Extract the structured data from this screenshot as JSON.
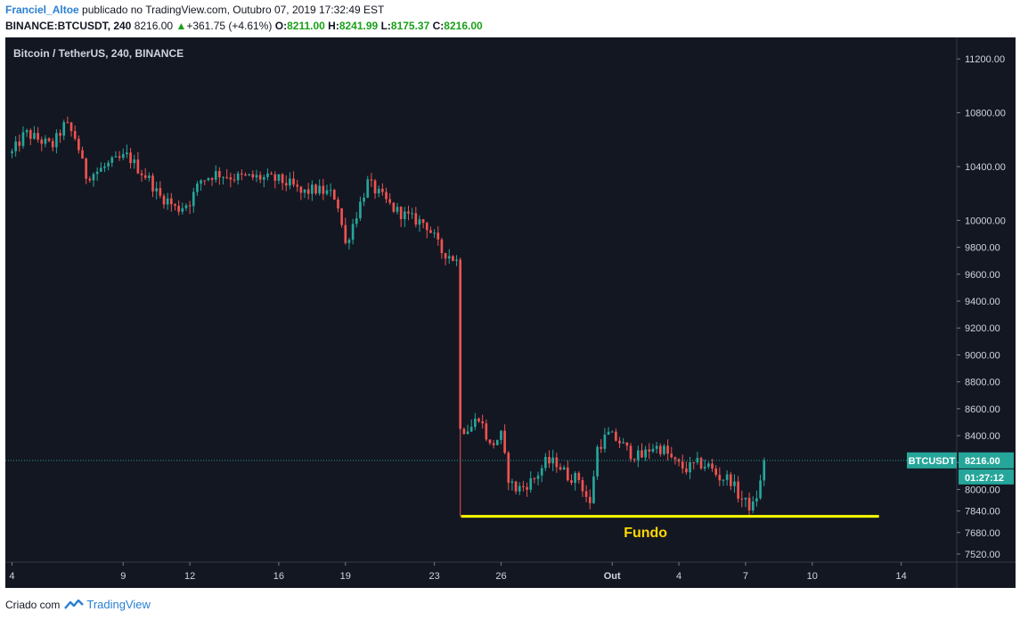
{
  "header": {
    "author": "Franciel_Altoe",
    "published": "publicado no TradingView.com, Outubro 07, 2019 17:32:49 EST",
    "symbol": "BINANCE:BTCUSDT, 240",
    "last": "8216.00",
    "change_arrow": "▲",
    "change": "+361.75 (+4.61%)",
    "o_label": "O:",
    "o_value": "8211.00",
    "h_label": "H:",
    "h_value": "8241.99",
    "l_label": "L:",
    "l_value": "8175.37",
    "c_label": "C:",
    "c_value": "8216.00"
  },
  "footer": {
    "created": "Criado com",
    "brand": "TradingView",
    "logo_icon": "tradingview-logo-icon"
  },
  "colors": {
    "background": "#131722",
    "up": "#26a69a",
    "down": "#ef5350",
    "support": "#ffff00",
    "annotation": "#ffd700",
    "price_tag": "#26a69a"
  },
  "chart_data": {
    "type": "candlestick",
    "title": "Bitcoin / TetherUS, 240, BINANCE",
    "ylim": [
      7460,
      11360
    ],
    "y_ticks": [
      "11200.00",
      "10800.00",
      "10400.00",
      "10000.00",
      "9800.00",
      "9600.00",
      "9400.00",
      "9200.00",
      "9000.00",
      "8800.00",
      "8600.00",
      "8400.00",
      "8200.00",
      "8000.00",
      "7840.00",
      "7680.00",
      "7520.00"
    ],
    "x_ticks": [
      {
        "label": "4",
        "day": 4
      },
      {
        "label": "9",
        "day": 9
      },
      {
        "label": "12",
        "day": 12
      },
      {
        "label": "16",
        "day": 16
      },
      {
        "label": "19",
        "day": 19
      },
      {
        "label": "23",
        "day": 23
      },
      {
        "label": "26",
        "day": 26
      },
      {
        "label": "Out",
        "day": 31
      },
      {
        "label": "4",
        "day": 34
      },
      {
        "label": "7",
        "day": 37
      },
      {
        "label": "10",
        "day": 40
      },
      {
        "label": "14",
        "day": 44
      }
    ],
    "x_range_days": [
      3.7,
      46.5
    ],
    "series_anchors": [
      [
        4,
        10500
      ],
      [
        4.6,
        10650
      ],
      [
        5.2,
        10600
      ],
      [
        5.8,
        10550
      ],
      [
        6.4,
        10720
      ],
      [
        6.9,
        10600
      ],
      [
        7.3,
        10330
      ],
      [
        7.8,
        10360
      ],
      [
        8.4,
        10420
      ],
      [
        9.2,
        10480
      ],
      [
        9.7,
        10380
      ],
      [
        10.2,
        10300
      ],
      [
        10.6,
        10180
      ],
      [
        11.0,
        10150
      ],
      [
        11.4,
        10080
      ],
      [
        12.0,
        10140
      ],
      [
        12.5,
        10300
      ],
      [
        13.2,
        10350
      ],
      [
        14.0,
        10320
      ],
      [
        15.0,
        10320
      ],
      [
        16.0,
        10300
      ],
      [
        16.6,
        10260
      ],
      [
        17.0,
        10200
      ],
      [
        17.6,
        10230
      ],
      [
        18.3,
        10200
      ],
      [
        18.6,
        10170
      ],
      [
        19.0,
        9820
      ],
      [
        19.5,
        10050
      ],
      [
        20.0,
        10280
      ],
      [
        20.6,
        10180
      ],
      [
        21.2,
        10080
      ],
      [
        22.0,
        10010
      ],
      [
        22.6,
        9980
      ],
      [
        23.0,
        9870
      ],
      [
        23.3,
        9770
      ],
      [
        23.6,
        9750
      ],
      [
        24.0,
        9700
      ],
      [
        24.2,
        8450
      ],
      [
        24.6,
        8450
      ],
      [
        25.0,
        8550
      ],
      [
        25.5,
        8320
      ],
      [
        26.0,
        8400
      ],
      [
        26.3,
        8100
      ],
      [
        26.6,
        8000
      ],
      [
        27.0,
        8020
      ],
      [
        27.5,
        8080
      ],
      [
        28.0,
        8200
      ],
      [
        28.5,
        8200
      ],
      [
        29.0,
        8100
      ],
      [
        29.5,
        8080
      ],
      [
        30.0,
        7880
      ],
      [
        30.3,
        8300
      ],
      [
        30.8,
        8410
      ],
      [
        31.3,
        8360
      ],
      [
        31.8,
        8270
      ],
      [
        32.3,
        8240
      ],
      [
        32.8,
        8320
      ],
      [
        33.3,
        8300
      ],
      [
        33.8,
        8200
      ],
      [
        34.3,
        8150
      ],
      [
        34.8,
        8190
      ],
      [
        35.3,
        8180
      ],
      [
        35.8,
        8090
      ],
      [
        36.3,
        8080
      ],
      [
        36.7,
        7950
      ],
      [
        37.0,
        7900
      ],
      [
        37.3,
        7860
      ],
      [
        37.6,
        8000
      ],
      [
        37.9,
        8216
      ]
    ],
    "support_line": {
      "value": 7800,
      "from_day": 24.2,
      "to_day": 43.0
    },
    "annotations": [
      {
        "text": "Fundo",
        "day": 32.5,
        "value": 7680
      }
    ],
    "current_price_label": "BTCUSDT",
    "current_price": 8216.0,
    "countdown": "01:27:12"
  }
}
